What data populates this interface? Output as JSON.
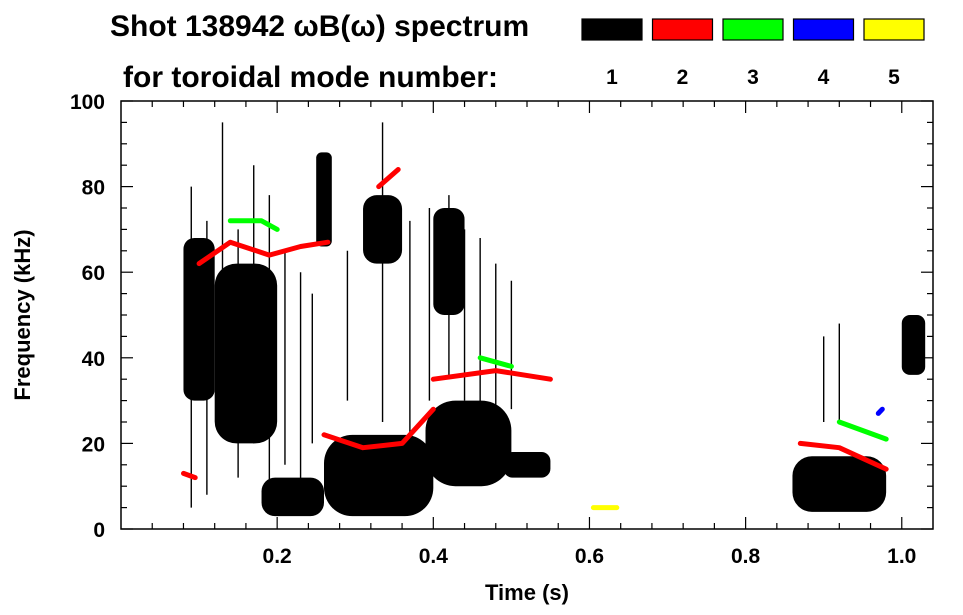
{
  "chart_data": {
    "type": "heatmap",
    "title": "Shot 138942 ωB(ω) spectrum",
    "subtitle": "for toroidal mode number:",
    "xlabel": "Time (s)",
    "ylabel": "Frequency (kHz)",
    "xlim": [
      0.0,
      1.04
    ],
    "ylim": [
      0,
      100
    ],
    "x_ticks": [
      {
        "value": 0.2,
        "label": "0.2"
      },
      {
        "value": 0.4,
        "label": "0.4"
      },
      {
        "value": 0.6,
        "label": "0.6"
      },
      {
        "value": 0.8,
        "label": "0.8"
      },
      {
        "value": 1.0,
        "label": "1.0"
      }
    ],
    "y_ticks": [
      {
        "value": 0,
        "label": "0"
      },
      {
        "value": 20,
        "label": "20"
      },
      {
        "value": 40,
        "label": "40"
      },
      {
        "value": 60,
        "label": "60"
      },
      {
        "value": 80,
        "label": "80"
      },
      {
        "value": 100,
        "label": "100"
      }
    ],
    "grid": false,
    "legend": [
      {
        "n": "1",
        "color": "#000000"
      },
      {
        "n": "2",
        "color": "#ff0000"
      },
      {
        "n": "3",
        "color": "#00ff00"
      },
      {
        "n": "4",
        "color": "#0000ff"
      },
      {
        "n": "5",
        "color": "#ffff00"
      }
    ],
    "blobs": [
      {
        "mode": "1",
        "t": [
          0.08,
          0.12
        ],
        "f": [
          30,
          68
        ]
      },
      {
        "mode": "1",
        "t": [
          0.12,
          0.2
        ],
        "f": [
          20,
          62
        ]
      },
      {
        "mode": "1",
        "t": [
          0.18,
          0.26
        ],
        "f": [
          3,
          12
        ]
      },
      {
        "mode": "1",
        "t": [
          0.25,
          0.27
        ],
        "f": [
          66,
          88
        ]
      },
      {
        "mode": "1",
        "t": [
          0.26,
          0.4
        ],
        "f": [
          3,
          22
        ]
      },
      {
        "mode": "1",
        "t": [
          0.31,
          0.36
        ],
        "f": [
          62,
          78
        ]
      },
      {
        "mode": "1",
        "t": [
          0.39,
          0.5
        ],
        "f": [
          10,
          30
        ]
      },
      {
        "mode": "1",
        "t": [
          0.49,
          0.55
        ],
        "f": [
          12,
          18
        ]
      },
      {
        "mode": "1",
        "t": [
          0.4,
          0.44
        ],
        "f": [
          50,
          75
        ]
      },
      {
        "mode": "1",
        "t": [
          0.86,
          0.98
        ],
        "f": [
          4,
          17
        ]
      },
      {
        "mode": "1",
        "t": [
          1.0,
          1.03
        ],
        "f": [
          36,
          50
        ]
      }
    ],
    "streaks": [
      {
        "mode": "1",
        "t": 0.09,
        "f": [
          5,
          80
        ]
      },
      {
        "mode": "1",
        "t": 0.11,
        "f": [
          8,
          72
        ]
      },
      {
        "mode": "1",
        "t": 0.13,
        "f": [
          30,
          95
        ]
      },
      {
        "mode": "1",
        "t": 0.15,
        "f": [
          12,
          70
        ]
      },
      {
        "mode": "1",
        "t": 0.17,
        "f": [
          20,
          85
        ]
      },
      {
        "mode": "1",
        "t": 0.19,
        "f": [
          10,
          78
        ]
      },
      {
        "mode": "1",
        "t": 0.21,
        "f": [
          15,
          65
        ]
      },
      {
        "mode": "1",
        "t": 0.23,
        "f": [
          8,
          60
        ]
      },
      {
        "mode": "1",
        "t": 0.245,
        "f": [
          20,
          55
        ]
      },
      {
        "mode": "1",
        "t": 0.29,
        "f": [
          30,
          65
        ]
      },
      {
        "mode": "1",
        "t": 0.335,
        "f": [
          25,
          95
        ]
      },
      {
        "mode": "1",
        "t": 0.37,
        "f": [
          20,
          72
        ]
      },
      {
        "mode": "1",
        "t": 0.395,
        "f": [
          30,
          75
        ]
      },
      {
        "mode": "1",
        "t": 0.42,
        "f": [
          35,
          78
        ]
      },
      {
        "mode": "1",
        "t": 0.44,
        "f": [
          30,
          70
        ]
      },
      {
        "mode": "1",
        "t": 0.46,
        "f": [
          25,
          68
        ]
      },
      {
        "mode": "1",
        "t": 0.48,
        "f": [
          25,
          62
        ]
      },
      {
        "mode": "1",
        "t": 0.5,
        "f": [
          28,
          58
        ]
      },
      {
        "mode": "1",
        "t": 0.9,
        "f": [
          25,
          45
        ]
      },
      {
        "mode": "1",
        "t": 0.92,
        "f": [
          25,
          48
        ]
      }
    ],
    "mode_lines": [
      {
        "mode": "2",
        "points": [
          [
            0.1,
            62
          ],
          [
            0.14,
            67
          ],
          [
            0.19,
            64
          ],
          [
            0.23,
            66
          ],
          [
            0.265,
            67
          ]
        ]
      },
      {
        "mode": "2",
        "points": [
          [
            0.26,
            22
          ],
          [
            0.31,
            19
          ],
          [
            0.36,
            20
          ],
          [
            0.4,
            28
          ]
        ]
      },
      {
        "mode": "2",
        "points": [
          [
            0.4,
            35
          ],
          [
            0.48,
            37
          ],
          [
            0.55,
            35
          ]
        ]
      },
      {
        "mode": "2",
        "points": [
          [
            0.87,
            20
          ],
          [
            0.92,
            19
          ],
          [
            0.98,
            14
          ]
        ]
      },
      {
        "mode": "2",
        "points": [
          [
            0.33,
            80
          ],
          [
            0.355,
            84
          ]
        ]
      },
      {
        "mode": "2",
        "points": [
          [
            0.08,
            13
          ],
          [
            0.095,
            12
          ]
        ]
      },
      {
        "mode": "3",
        "points": [
          [
            0.14,
            72
          ],
          [
            0.18,
            72
          ],
          [
            0.2,
            70
          ]
        ]
      },
      {
        "mode": "3",
        "points": [
          [
            0.46,
            40
          ],
          [
            0.5,
            38
          ]
        ]
      },
      {
        "mode": "3",
        "points": [
          [
            0.92,
            25
          ],
          [
            0.98,
            21
          ]
        ]
      },
      {
        "mode": "4",
        "points": [
          [
            0.97,
            27
          ],
          [
            0.975,
            28
          ]
        ]
      },
      {
        "mode": "5",
        "points": [
          [
            0.605,
            5
          ],
          [
            0.635,
            5
          ]
        ]
      }
    ]
  }
}
